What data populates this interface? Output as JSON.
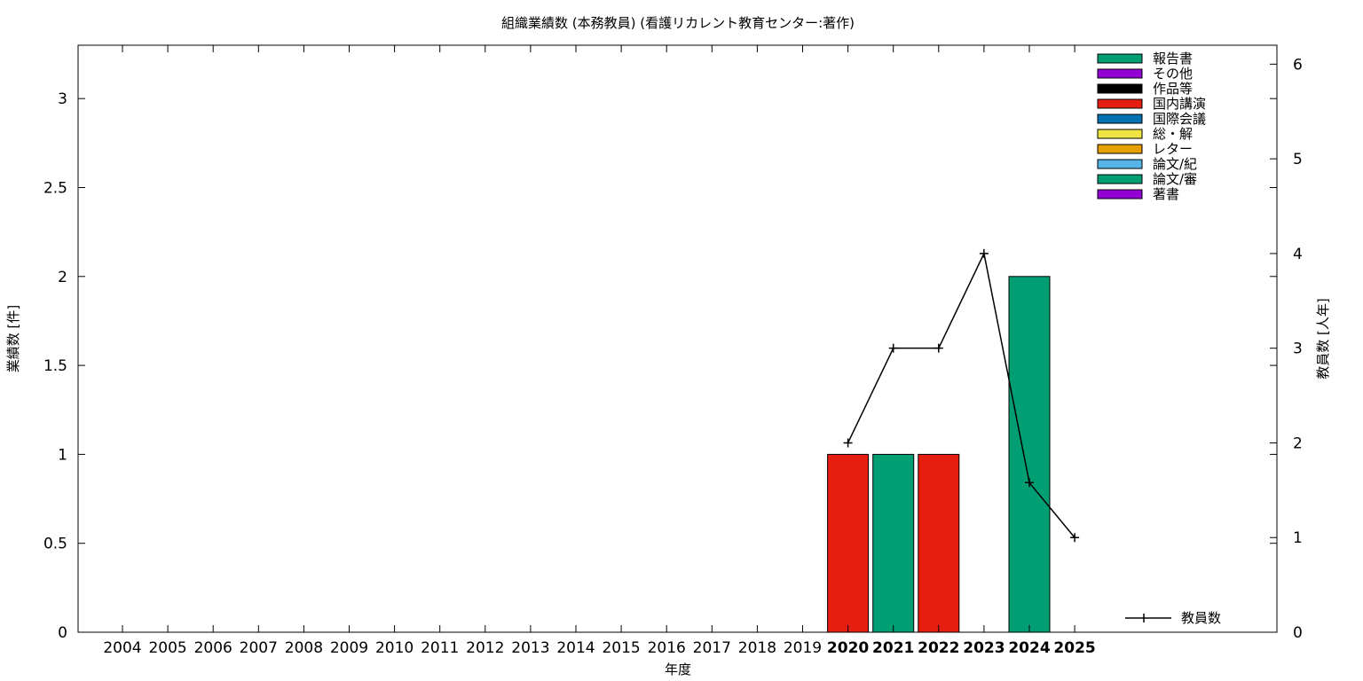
{
  "chart_data": {
    "type": "bar",
    "title": "組織業績数 (本務教員) (看護リカレント教育センター:著作)",
    "xlabel": "年度",
    "ylabel": "業績数 [件]",
    "y2label": "教員数 [人年]",
    "categories": [
      "2004",
      "2005",
      "2006",
      "2007",
      "2008",
      "2009",
      "2010",
      "2011",
      "2012",
      "2013",
      "2014",
      "2015",
      "2016",
      "2017",
      "2018",
      "2019",
      "2020",
      "2021",
      "2022",
      "2023",
      "2024",
      "2025"
    ],
    "bold_categories": [
      "2020",
      "2021",
      "2022",
      "2023",
      "2024",
      "2025"
    ],
    "ylim": [
      0,
      3.3
    ],
    "yticks": [
      "0",
      "0.5",
      "1",
      "1.5",
      "2",
      "2.5",
      "3"
    ],
    "y2lim": [
      0,
      6.2
    ],
    "y2ticks": [
      "0",
      "1",
      "2",
      "3",
      "4",
      "5",
      "6"
    ],
    "grid": false,
    "legend_position": "top-right",
    "series": [
      {
        "name": "報告書",
        "color": "#009e73",
        "values": [
          0,
          0,
          0,
          0,
          0,
          0,
          0,
          0,
          0,
          0,
          0,
          0,
          0,
          0,
          0,
          0,
          0,
          0,
          0,
          0,
          0,
          0
        ]
      },
      {
        "name": "その他",
        "color": "#9400d3",
        "values": [
          0,
          0,
          0,
          0,
          0,
          0,
          0,
          0,
          0,
          0,
          0,
          0,
          0,
          0,
          0,
          0,
          0,
          0,
          0,
          0,
          0,
          0
        ]
      },
      {
        "name": "作品等",
        "color": "#000000",
        "values": [
          0,
          0,
          0,
          0,
          0,
          0,
          0,
          0,
          0,
          0,
          0,
          0,
          0,
          0,
          0,
          0,
          0,
          0,
          0,
          0,
          0,
          0
        ]
      },
      {
        "name": "国内講演",
        "color": "#e51e10",
        "values": [
          0,
          0,
          0,
          0,
          0,
          0,
          0,
          0,
          0,
          0,
          0,
          0,
          0,
          0,
          0,
          0,
          1,
          0,
          1,
          0,
          0,
          0
        ]
      },
      {
        "name": "国際会議",
        "color": "#0072b2",
        "values": [
          0,
          0,
          0,
          0,
          0,
          0,
          0,
          0,
          0,
          0,
          0,
          0,
          0,
          0,
          0,
          0,
          0,
          0,
          0,
          0,
          0,
          0
        ]
      },
      {
        "name": "総・解",
        "color": "#f0e442",
        "values": [
          0,
          0,
          0,
          0,
          0,
          0,
          0,
          0,
          0,
          0,
          0,
          0,
          0,
          0,
          0,
          0,
          0,
          0,
          0,
          0,
          0,
          0
        ]
      },
      {
        "name": "レター",
        "color": "#e69f00",
        "values": [
          0,
          0,
          0,
          0,
          0,
          0,
          0,
          0,
          0,
          0,
          0,
          0,
          0,
          0,
          0,
          0,
          0,
          0,
          0,
          0,
          0,
          0
        ]
      },
      {
        "name": "論文/紀",
        "color": "#56b4e9",
        "values": [
          0,
          0,
          0,
          0,
          0,
          0,
          0,
          0,
          0,
          0,
          0,
          0,
          0,
          0,
          0,
          0,
          0,
          0,
          0,
          0,
          0,
          0
        ]
      },
      {
        "name": "論文/審",
        "color": "#009e73",
        "values": [
          0,
          0,
          0,
          0,
          0,
          0,
          0,
          0,
          0,
          0,
          0,
          0,
          0,
          0,
          0,
          0,
          0,
          1,
          0,
          0,
          2,
          0
        ]
      },
      {
        "name": "著書",
        "color": "#9400d3",
        "values": [
          0,
          0,
          0,
          0,
          0,
          0,
          0,
          0,
          0,
          0,
          0,
          0,
          0,
          0,
          0,
          0,
          0,
          0,
          0,
          0,
          0,
          0
        ]
      }
    ],
    "line_series": {
      "name": "教員数",
      "color": "#000000",
      "axis": "y2",
      "x": [
        "2020",
        "2021",
        "2022",
        "2023",
        "2024",
        "2025"
      ],
      "values": [
        2,
        3,
        3,
        4,
        1.58,
        1
      ]
    }
  }
}
